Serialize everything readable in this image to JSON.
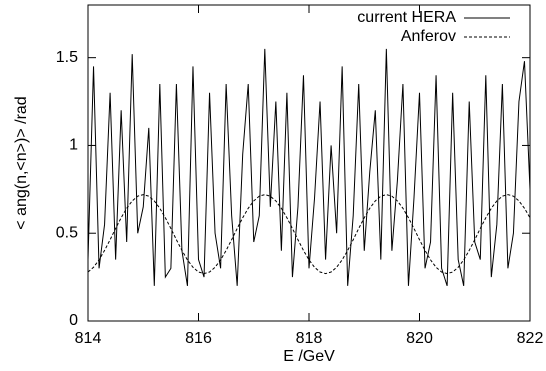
{
  "chart_data": {
    "type": "line",
    "xlabel": "E /GeV",
    "ylabel": "< ang(n,<n>)> /rad",
    "x": [
      814.0,
      814.1,
      814.2,
      814.3,
      814.4,
      814.5,
      814.6,
      814.7,
      814.8,
      814.9,
      815.0,
      815.1,
      815.2,
      815.3,
      815.4,
      815.5,
      815.6,
      815.7,
      815.8,
      815.9,
      816.0,
      816.1,
      816.2,
      816.3,
      816.4,
      816.5,
      816.6,
      816.7,
      816.8,
      816.9,
      817.0,
      817.1,
      817.2,
      817.3,
      817.4,
      817.5,
      817.6,
      817.7,
      817.8,
      817.9,
      818.0,
      818.1,
      818.2,
      818.3,
      818.4,
      818.5,
      818.6,
      818.7,
      818.8,
      818.9,
      819.0,
      819.1,
      819.2,
      819.3,
      819.4,
      819.5,
      819.6,
      819.7,
      819.8,
      819.9,
      820.0,
      820.1,
      820.2,
      820.3,
      820.4,
      820.5,
      820.6,
      820.7,
      820.8,
      820.9,
      821.0,
      821.1,
      821.2,
      821.3,
      821.4,
      821.5,
      821.6,
      821.7,
      821.8,
      821.9,
      822.0
    ],
    "series": [
      {
        "name": "current HERA",
        "color": "#000000",
        "dash": "solid",
        "values": [
          0.35,
          1.45,
          0.3,
          0.55,
          1.3,
          0.35,
          1.2,
          0.45,
          1.52,
          0.5,
          0.65,
          1.1,
          0.2,
          1.35,
          0.25,
          0.3,
          1.35,
          0.4,
          0.2,
          1.45,
          0.35,
          0.25,
          1.3,
          0.5,
          0.3,
          1.35,
          0.6,
          0.2,
          0.95,
          1.35,
          0.45,
          0.6,
          1.55,
          0.65,
          1.25,
          0.4,
          1.3,
          0.25,
          0.65,
          1.4,
          0.3,
          0.7,
          1.25,
          0.35,
          1.0,
          0.5,
          1.45,
          0.2,
          0.6,
          1.35,
          0.4,
          0.85,
          1.2,
          0.35,
          1.55,
          0.4,
          0.8,
          1.35,
          0.2,
          0.7,
          1.3,
          0.3,
          0.45,
          1.4,
          0.3,
          0.2,
          1.3,
          0.35,
          0.2,
          1.25,
          0.45,
          0.35,
          1.4,
          0.25,
          0.55,
          1.35,
          0.3,
          0.5,
          1.25,
          1.48,
          0.75
        ]
      },
      {
        "name": "Anferov",
        "color": "#000000",
        "dash": "dashed",
        "values": [
          0.279,
          0.306,
          0.348,
          0.402,
          0.463,
          0.527,
          0.588,
          0.642,
          0.684,
          0.711,
          0.72,
          0.711,
          0.684,
          0.642,
          0.588,
          0.527,
          0.463,
          0.402,
          0.348,
          0.306,
          0.279,
          0.27,
          0.279,
          0.306,
          0.348,
          0.402,
          0.463,
          0.527,
          0.588,
          0.642,
          0.684,
          0.711,
          0.72,
          0.711,
          0.684,
          0.642,
          0.588,
          0.527,
          0.463,
          0.402,
          0.348,
          0.306,
          0.279,
          0.27,
          0.279,
          0.306,
          0.348,
          0.402,
          0.463,
          0.527,
          0.588,
          0.642,
          0.684,
          0.711,
          0.72,
          0.711,
          0.684,
          0.642,
          0.588,
          0.527,
          0.463,
          0.402,
          0.348,
          0.306,
          0.279,
          0.27,
          0.279,
          0.306,
          0.348,
          0.402,
          0.463,
          0.527,
          0.588,
          0.642,
          0.684,
          0.711,
          0.72,
          0.711,
          0.684,
          0.642,
          0.588
        ]
      }
    ],
    "xlim": [
      814,
      822
    ],
    "xticks": [
      814,
      816,
      818,
      820,
      822
    ],
    "ylim": [
      0,
      1.8
    ],
    "yticks": [
      0,
      0.5,
      1,
      1.5
    ],
    "legend": "top-right"
  }
}
